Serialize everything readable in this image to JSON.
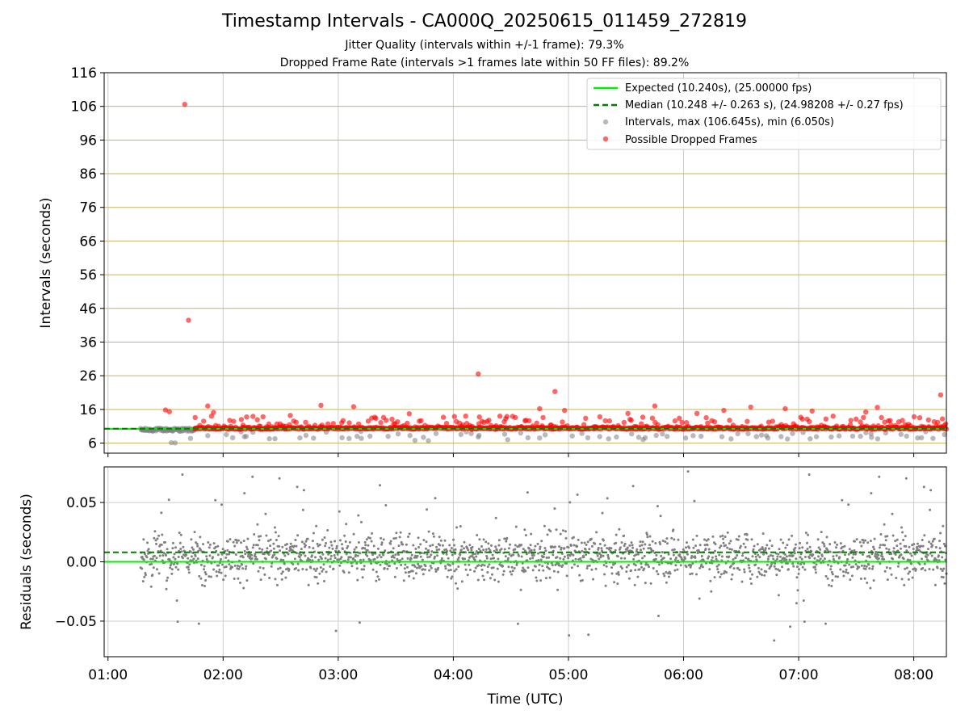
{
  "title": "Timestamp Intervals - CA000Q_20250615_011459_272819",
  "subtitle_1": "Jitter Quality (intervals within +/-1 frame): 79.3%",
  "subtitle_2": "Dropped Frame Rate (intervals >1 frames late within 50 FF files): 89.2%",
  "colors": {
    "expected": "#00ee00",
    "median": "#007f00",
    "interval_points": "#808080",
    "dropped_points": "#ff0000",
    "intervals_gridlines": "#c8b464",
    "grid": "#cccccc"
  },
  "chart_data": [
    {
      "type": "scatter",
      "panel": "intervals",
      "ylabel": "Intervals (seconds)",
      "ylim": [
        3,
        116
      ],
      "yticks": [
        "6",
        "16",
        "26",
        "36",
        "46",
        "56",
        "66",
        "76",
        "86",
        "96",
        "106",
        "116"
      ],
      "xlim": [
        "00:58",
        "08:17"
      ],
      "xticks": [
        "01:00",
        "02:00",
        "03:00",
        "04:00",
        "05:00",
        "06:00",
        "07:00",
        "08:00"
      ],
      "grid": true,
      "legend_position": "top-right",
      "legend": [
        "Expected (10.240s), (25.00000 fps)",
        "Median (10.248 +/- 0.263 s), (24.98208 +/- 0.27 fps)",
        "Intervals, max (106.645s), min (6.050s)",
        "Possible Dropped Frames"
      ],
      "expected_value": 10.24,
      "median_value": 10.248,
      "series": [
        {
          "name": "Possible Dropped Frames",
          "color": "#ff0000",
          "note_x_format": "hh:mm",
          "points": [
            [
              "01:40",
              106.6
            ],
            [
              "01:42",
              42.5
            ],
            [
              "04:13",
              26.5
            ],
            [
              "04:53",
              21.3
            ],
            [
              "08:14",
              20.3
            ],
            [
              "01:30",
              15.8
            ],
            [
              "01:32",
              15.3
            ],
            [
              "01:52",
              17.0
            ],
            [
              "01:55",
              15.1
            ],
            [
              "02:51",
              17.2
            ],
            [
              "03:08",
              16.8
            ],
            [
              "04:58",
              15.7
            ],
            [
              "05:45",
              17.0
            ],
            [
              "06:35",
              16.7
            ],
            [
              "06:53",
              16.2
            ],
            [
              "07:41",
              16.6
            ],
            [
              "03:37",
              14.7
            ],
            [
              "02:35",
              14.2
            ],
            [
              "04:45",
              16.2
            ],
            [
              "06:21",
              15.7
            ],
            [
              "07:07",
              15.5
            ],
            [
              "07:35",
              15.2
            ],
            [
              "05:31",
              14.8
            ],
            [
              "06:07",
              14.8
            ]
          ],
          "dense_band": {
            "from": "01:45",
            "to": "08:17",
            "y_min": 10.1,
            "y_max": 13.5
          }
        },
        {
          "name": "Intervals, max (106.645s), min (6.050s)",
          "color": "#808080",
          "points": [
            [
              "01:33",
              6.1
            ],
            [
              "01:35",
              6.05
            ],
            [
              "01:43",
              7.4
            ],
            [
              "01:52",
              8.2
            ],
            [
              "02:05",
              7.6
            ],
            [
              "02:12",
              8.0
            ],
            [
              "02:27",
              7.3
            ],
            [
              "03:02",
              7.6
            ],
            [
              "03:12",
              7.4
            ],
            [
              "03:26",
              8.0
            ],
            [
              "03:40",
              6.8
            ],
            [
              "03:47",
              6.7
            ],
            [
              "04:13",
              7.8
            ],
            [
              "04:45",
              7.5
            ],
            [
              "05:02",
              8.1
            ],
            [
              "05:25",
              7.8
            ],
            [
              "05:40",
              7.6
            ],
            [
              "06:05",
              8.2
            ],
            [
              "06:20",
              7.9
            ],
            [
              "06:44",
              7.5
            ],
            [
              "07:17",
              7.8
            ],
            [
              "07:38",
              7.7
            ],
            [
              "08:02",
              7.5
            ],
            [
              "08:10",
              7.4
            ]
          ],
          "dense_band": {
            "from": "01:17",
            "to": "01:45",
            "y_min": 9.5,
            "y_max": 11.0
          }
        }
      ]
    },
    {
      "type": "scatter",
      "panel": "residuals",
      "ylabel": "Residuals (seconds)",
      "xlabel": "Time (UTC)",
      "ylim": [
        -0.08,
        0.08
      ],
      "yticks": [
        "−0.05",
        "0.00",
        "0.05"
      ],
      "xlim": [
        "00:58",
        "08:17"
      ],
      "xticks": [
        "01:00",
        "02:00",
        "03:00",
        "04:00",
        "05:00",
        "06:00",
        "07:00",
        "08:00"
      ],
      "grid": true,
      "expected_value": 0.0,
      "median_value": 0.008,
      "series": [
        {
          "name": "Intervals",
          "color": "#808080",
          "distribution": {
            "from": "01:17",
            "to": "08:17",
            "center": 0.005,
            "spread": 0.018,
            "min": -0.071,
            "max": 0.078
          }
        }
      ]
    }
  ]
}
